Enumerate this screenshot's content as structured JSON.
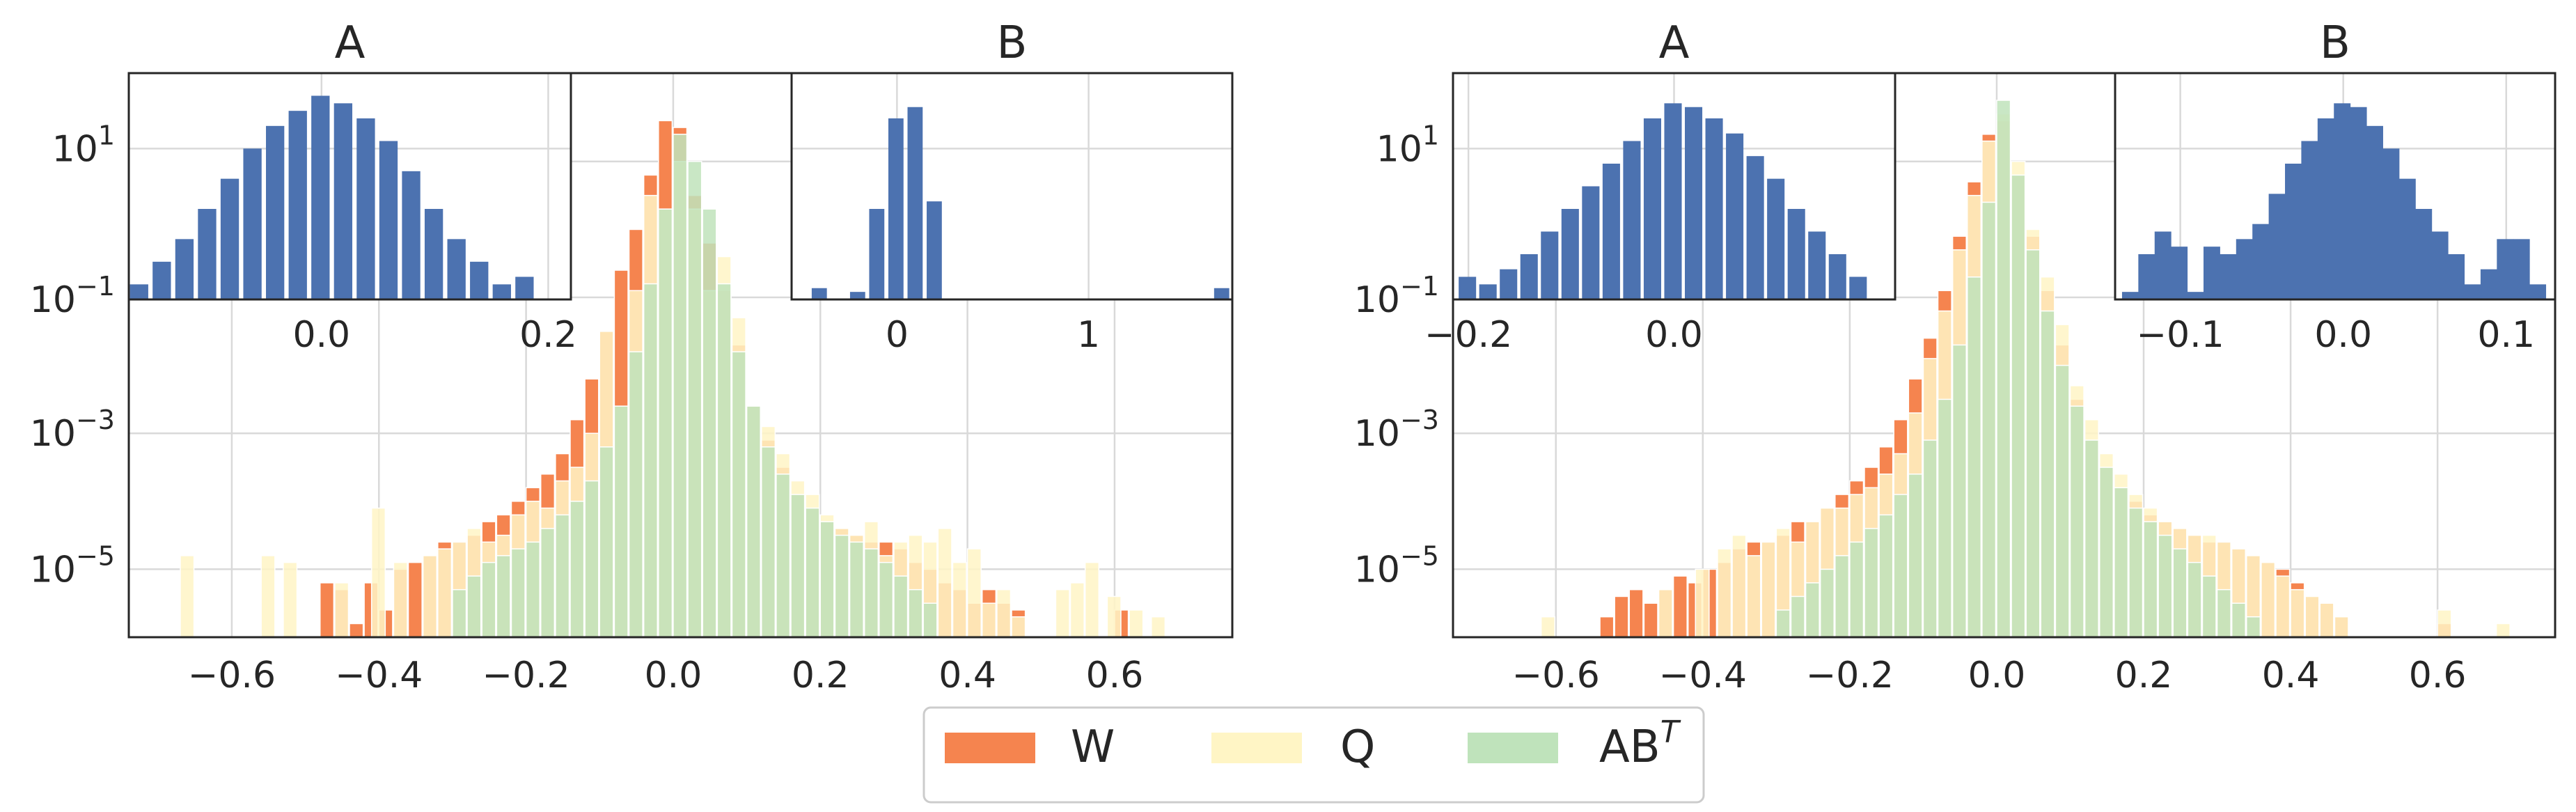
{
  "colors": {
    "W": "#f5844f",
    "Q": "#fff5c5",
    "ABT": "#bfe3bb",
    "inset": "#4c72b0",
    "grid": "#d9d9d9",
    "axis": "#262626"
  },
  "legend": {
    "W": "W",
    "Q": "Q",
    "ABT_base": "AB",
    "ABT_sup": "T"
  },
  "chart_data": [
    {
      "type": "histogram",
      "title": "",
      "yscale": "log",
      "xlim": [
        -0.74,
        0.76
      ],
      "ylim_log10": [
        -6.0,
        2.3
      ],
      "xticks": [
        -0.6,
        -0.4,
        -0.2,
        0.0,
        0.2,
        0.4,
        0.6
      ],
      "xtick_labels": [
        "−0.6",
        "−0.4",
        "−0.2",
        "0.0",
        "0.2",
        "0.4",
        "0.6"
      ],
      "yticks_log10": [
        -5,
        -3
      ],
      "ytick_labels": [
        {
          "base": "10",
          "exp": "−5"
        },
        {
          "base": "10",
          "exp": "−3"
        }
      ],
      "series": [
        {
          "name": "W",
          "x": [
            -0.47,
            -0.45,
            -0.43,
            -0.41,
            -0.39,
            -0.37,
            -0.35,
            -0.33,
            -0.31,
            -0.29,
            -0.27,
            -0.25,
            -0.23,
            -0.21,
            -0.19,
            -0.17,
            -0.15,
            -0.13,
            -0.11,
            -0.09,
            -0.07,
            -0.05,
            -0.03,
            -0.01,
            0.01,
            0.03,
            0.05,
            0.07,
            0.09,
            0.11,
            0.13,
            0.15,
            0.17,
            0.19,
            0.21,
            0.23,
            0.25,
            0.27,
            0.29,
            0.31,
            0.33,
            0.35,
            0.37,
            0.39,
            0.41,
            0.43,
            0.45,
            0.47,
            0.61
          ],
          "log10": [
            -5.2,
            -5.3,
            -5.8,
            -5.2,
            -5.6,
            -5.0,
            -4.9,
            -4.8,
            -4.6,
            -4.6,
            -4.5,
            -4.3,
            -4.2,
            -4.0,
            -3.8,
            -3.6,
            -3.3,
            -2.8,
            -2.2,
            -1.5,
            -0.6,
            0.0,
            0.8,
            1.6,
            1.5,
            0.5,
            -0.2,
            -0.9,
            -1.7,
            -2.6,
            -3.1,
            -3.5,
            -3.9,
            -4.1,
            -4.3,
            -4.4,
            -4.5,
            -4.6,
            -4.6,
            -4.7,
            -4.9,
            -5.0,
            -5.2,
            -5.3,
            -5.5,
            -5.3,
            -5.5,
            -5.6,
            -5.6
          ]
        },
        {
          "name": "Q",
          "x": [
            -0.66,
            -0.55,
            -0.52,
            -0.45,
            -0.4,
            -0.37,
            -0.33,
            -0.31,
            -0.29,
            -0.27,
            -0.25,
            -0.23,
            -0.21,
            -0.19,
            -0.17,
            -0.15,
            -0.13,
            -0.11,
            -0.09,
            -0.07,
            -0.05,
            -0.03,
            -0.01,
            0.01,
            0.03,
            0.05,
            0.07,
            0.09,
            0.11,
            0.13,
            0.15,
            0.17,
            0.19,
            0.21,
            0.23,
            0.25,
            0.27,
            0.29,
            0.31,
            0.33,
            0.35,
            0.37,
            0.39,
            0.41,
            0.43,
            0.45,
            0.47,
            0.53,
            0.55,
            0.57,
            0.6,
            0.63,
            0.66
          ],
          "log10": [
            -4.8,
            -4.8,
            -4.9,
            -5.2,
            -4.1,
            -4.9,
            -4.8,
            -4.7,
            -4.6,
            -4.4,
            -4.6,
            -4.5,
            -4.2,
            -4.0,
            -4.1,
            -3.7,
            -3.5,
            -3.0,
            -1.5,
            -2.6,
            -0.9,
            0.5,
            0.3,
            1.0,
            0.3,
            -0.9,
            -0.4,
            -1.3,
            -2.6,
            -2.9,
            -3.3,
            -3.7,
            -3.9,
            -4.2,
            -4.4,
            -4.5,
            -4.3,
            -4.8,
            -4.6,
            -4.5,
            -4.6,
            -4.4,
            -4.9,
            -4.7,
            -5.5,
            -5.3,
            -5.7,
            -5.3,
            -5.2,
            -4.9,
            -5.4,
            -5.6,
            -5.7
          ]
        },
        {
          "name": "ABT",
          "x": [
            -0.29,
            -0.27,
            -0.25,
            -0.23,
            -0.21,
            -0.19,
            -0.17,
            -0.15,
            -0.13,
            -0.11,
            -0.09,
            -0.07,
            -0.05,
            -0.03,
            -0.01,
            0.01,
            0.03,
            0.05,
            0.07,
            0.09,
            0.11,
            0.13,
            0.15,
            0.17,
            0.19,
            0.21,
            0.23,
            0.25,
            0.27,
            0.29,
            0.31,
            0.33,
            0.35
          ],
          "log10": [
            -5.3,
            -5.1,
            -4.9,
            -4.8,
            -4.7,
            -4.6,
            -4.4,
            -4.2,
            -4.0,
            -3.7,
            -3.2,
            -2.6,
            -1.8,
            -0.8,
            0.3,
            1.4,
            1.0,
            0.3,
            -0.8,
            -1.8,
            -2.6,
            -3.2,
            -3.6,
            -3.9,
            -4.1,
            -4.3,
            -4.5,
            -4.6,
            -4.7,
            -4.9,
            -5.1,
            -5.3,
            -5.5
          ]
        }
      ],
      "insets": [
        {
          "title": "A",
          "xlim": [
            -0.17,
            0.22
          ],
          "xticks": [
            0.0,
            0.2
          ],
          "xtick_labels": [
            "0.0",
            "0.2"
          ],
          "ylim_log10": [
            -1.0,
            2.0
          ],
          "yticks_log10": [
            1,
            -1
          ],
          "ytick_labels": [
            {
              "base": "10",
              "exp": "1"
            },
            {
              "base": "10",
              "exp": "−1"
            }
          ],
          "bin_width": 0.018,
          "x": [
            -0.16,
            -0.14,
            -0.12,
            -0.1,
            -0.08,
            -0.06,
            -0.04,
            -0.02,
            0.0,
            0.02,
            0.04,
            0.06,
            0.08,
            0.1,
            0.12,
            0.14,
            0.16,
            0.18
          ],
          "log10": [
            -0.8,
            -0.5,
            -0.2,
            0.2,
            0.6,
            1.0,
            1.3,
            1.5,
            1.7,
            1.6,
            1.4,
            1.1,
            0.7,
            0.2,
            -0.2,
            -0.5,
            -0.8,
            -0.7
          ]
        },
        {
          "title": "B",
          "xlim": [
            -0.55,
            1.75
          ],
          "xticks": [
            0,
            1
          ],
          "xtick_labels": [
            "0",
            "1"
          ],
          "ylim_log10": [
            -1.0,
            2.0
          ],
          "yticks_log10": [],
          "ytick_labels": [],
          "bin_width": 0.09,
          "x": [
            -0.4,
            -0.2,
            -0.1,
            0.0,
            0.1,
            0.2,
            1.7
          ],
          "log10": [
            -0.85,
            -0.9,
            0.2,
            1.4,
            1.55,
            0.3,
            -0.85
          ]
        }
      ]
    },
    {
      "type": "histogram",
      "title": "",
      "yscale": "log",
      "xlim": [
        -0.74,
        0.76
      ],
      "ylim_log10": [
        -6.0,
        2.3
      ],
      "xticks": [
        -0.6,
        -0.4,
        -0.2,
        0.0,
        0.2,
        0.4,
        0.6
      ],
      "xtick_labels": [
        "−0.6",
        "−0.4",
        "−0.2",
        "0.0",
        "0.2",
        "0.4",
        "0.6"
      ],
      "yticks_log10": [
        -5,
        -3
      ],
      "ytick_labels": [
        {
          "base": "10",
          "exp": "−5"
        },
        {
          "base": "10",
          "exp": "−3"
        }
      ],
      "series": [
        {
          "name": "W",
          "x": [
            -0.53,
            -0.51,
            -0.49,
            -0.47,
            -0.45,
            -0.43,
            -0.41,
            -0.39,
            -0.37,
            -0.35,
            -0.33,
            -0.31,
            -0.29,
            -0.27,
            -0.25,
            -0.23,
            -0.21,
            -0.19,
            -0.17,
            -0.15,
            -0.13,
            -0.11,
            -0.09,
            -0.07,
            -0.05,
            -0.03,
            -0.01,
            0.01,
            0.03,
            0.05,
            0.07,
            0.09,
            0.11,
            0.13,
            0.15,
            0.17,
            0.19,
            0.21,
            0.23,
            0.25,
            0.27,
            0.29,
            0.31,
            0.33,
            0.35,
            0.37,
            0.39,
            0.41,
            0.43,
            0.45,
            0.47,
            0.61
          ],
          "log10": [
            -5.7,
            -5.4,
            -5.3,
            -5.5,
            -5.3,
            -5.1,
            -5.2,
            -5.0,
            -4.9,
            -4.7,
            -4.6,
            -4.6,
            -4.5,
            -4.3,
            -4.3,
            -4.1,
            -3.9,
            -3.7,
            -3.5,
            -3.2,
            -2.8,
            -2.2,
            -1.6,
            -0.9,
            -0.1,
            0.7,
            1.4,
            1.6,
            0.8,
            -0.1,
            -0.9,
            -1.7,
            -2.5,
            -3.1,
            -3.5,
            -3.8,
            -4.0,
            -4.2,
            -4.3,
            -4.4,
            -4.5,
            -4.6,
            -4.6,
            -4.7,
            -4.8,
            -4.9,
            -5.0,
            -5.2,
            -5.4,
            -5.5,
            -5.7,
            -5.8
          ]
        },
        {
          "name": "Q",
          "x": [
            -0.61,
            -0.45,
            -0.4,
            -0.37,
            -0.35,
            -0.33,
            -0.31,
            -0.29,
            -0.27,
            -0.25,
            -0.23,
            -0.21,
            -0.19,
            -0.17,
            -0.15,
            -0.13,
            -0.11,
            -0.09,
            -0.07,
            -0.05,
            -0.03,
            -0.01,
            0.01,
            0.03,
            0.05,
            0.07,
            0.09,
            0.11,
            0.13,
            0.15,
            0.17,
            0.19,
            0.21,
            0.23,
            0.25,
            0.27,
            0.29,
            0.31,
            0.33,
            0.35,
            0.37,
            0.39,
            0.41,
            0.43,
            0.45,
            0.47,
            0.61,
            0.69
          ],
          "log10": [
            -5.7,
            -5.3,
            -5.0,
            -4.7,
            -4.5,
            -4.8,
            -4.6,
            -4.4,
            -4.6,
            -4.3,
            -4.1,
            -4.1,
            -3.9,
            -3.8,
            -3.6,
            -3.3,
            -2.7,
            -1.9,
            -1.2,
            -0.3,
            0.5,
            1.3,
            1.7,
            1.0,
            0.0,
            -0.7,
            -1.4,
            -2.3,
            -2.8,
            -3.3,
            -3.6,
            -3.9,
            -4.1,
            -4.3,
            -4.4,
            -4.5,
            -4.5,
            -4.6,
            -4.7,
            -4.8,
            -4.9,
            -5.1,
            -5.3,
            -5.4,
            -5.5,
            -5.7,
            -5.6,
            -5.8
          ]
        },
        {
          "name": "ABT",
          "x": [
            -0.29,
            -0.27,
            -0.25,
            -0.23,
            -0.21,
            -0.19,
            -0.17,
            -0.15,
            -0.13,
            -0.11,
            -0.09,
            -0.07,
            -0.05,
            -0.03,
            -0.01,
            0.01,
            0.03,
            0.05,
            0.07,
            0.09,
            0.11,
            0.13,
            0.15,
            0.17,
            0.19,
            0.21,
            0.23,
            0.25,
            0.27,
            0.29,
            0.31,
            0.33,
            0.35
          ],
          "log10": [
            -5.6,
            -5.4,
            -5.2,
            -5.0,
            -4.8,
            -4.6,
            -4.4,
            -4.2,
            -3.9,
            -3.6,
            -3.1,
            -2.5,
            -1.7,
            -0.7,
            0.4,
            1.9,
            0.8,
            -0.3,
            -1.2,
            -2.0,
            -2.6,
            -3.1,
            -3.5,
            -3.8,
            -4.1,
            -4.3,
            -4.5,
            -4.7,
            -4.9,
            -5.1,
            -5.3,
            -5.5,
            -5.7
          ]
        }
      ],
      "insets": [
        {
          "title": "A",
          "xlim": [
            -0.215,
            0.215
          ],
          "xticks": [
            -0.2,
            0.0
          ],
          "xtick_labels": [
            "−0.2",
            "0.0"
          ],
          "ylim_log10": [
            -1.0,
            2.0
          ],
          "yticks_log10": [
            1,
            -1
          ],
          "ytick_labels": [
            {
              "base": "10",
              "exp": "1"
            },
            {
              "base": "10",
              "exp": "−1"
            }
          ],
          "bin_width": 0.019,
          "x": [
            -0.2,
            -0.18,
            -0.16,
            -0.14,
            -0.12,
            -0.1,
            -0.08,
            -0.06,
            -0.04,
            -0.02,
            0.0,
            0.02,
            0.04,
            0.06,
            0.08,
            0.1,
            0.12,
            0.14,
            0.16,
            0.18
          ],
          "log10": [
            -0.7,
            -0.8,
            -0.6,
            -0.4,
            -0.1,
            0.2,
            0.5,
            0.8,
            1.1,
            1.4,
            1.6,
            1.55,
            1.4,
            1.2,
            0.9,
            0.6,
            0.2,
            -0.1,
            -0.4,
            -0.7
          ]
        },
        {
          "title": "B",
          "xlim": [
            -0.14,
            0.13
          ],
          "xticks": [
            -0.1,
            0.0,
            0.1
          ],
          "xtick_labels": [
            "−0.1",
            "0.0",
            "0.1"
          ],
          "ylim_log10": [
            -1.0,
            2.0
          ],
          "yticks_log10": [],
          "ytick_labels": [],
          "bin_width": 0.0115,
          "x": [
            -0.13,
            -0.12,
            -0.11,
            -0.1,
            -0.09,
            -0.08,
            -0.07,
            -0.06,
            -0.05,
            -0.04,
            -0.03,
            -0.02,
            -0.01,
            0.0,
            0.01,
            0.02,
            0.03,
            0.04,
            0.05,
            0.06,
            0.07,
            0.08,
            0.09,
            0.1,
            0.11,
            0.12
          ],
          "log10": [
            -0.9,
            -0.4,
            -0.1,
            -0.3,
            -0.9,
            -0.3,
            -0.4,
            -0.2,
            0.0,
            0.4,
            0.8,
            1.1,
            1.4,
            1.6,
            1.55,
            1.3,
            1.0,
            0.6,
            0.2,
            -0.1,
            -0.4,
            -0.8,
            -0.6,
            -0.2,
            -0.2,
            -0.8
          ]
        }
      ]
    }
  ]
}
